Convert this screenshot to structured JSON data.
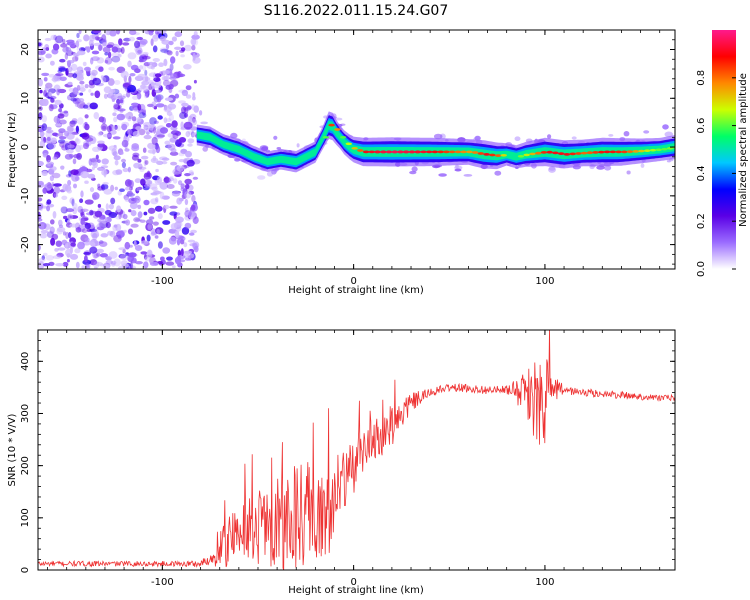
{
  "title": "S116.2022.011.15.24.G07",
  "chart_data": [
    {
      "type": "heatmap",
      "xlabel": "Height of straight line (km)",
      "ylabel": "Frequency (Hz)",
      "xlim": [
        -165,
        168
      ],
      "ylim": [
        -25,
        24
      ],
      "xticks": [
        -100,
        0,
        100
      ],
      "yticks": [
        -20,
        -10,
        0,
        10,
        20
      ],
      "colorbar": {
        "label": "Normalized spectral amplitude",
        "range": [
          0,
          1
        ],
        "ticks": [
          0.0,
          0.2,
          0.4,
          0.6,
          0.8
        ],
        "tick_labels": [
          "0.0",
          "0.2",
          "0.4",
          "0.6",
          "0.8"
        ],
        "colormap": [
          "#ffffff",
          "#9b6cff",
          "#5a00e6",
          "#0000ff",
          "#00c8ff",
          "#00ff66",
          "#ccff00",
          "#ff8800",
          "#ff0000",
          "#ff1a8c"
        ]
      },
      "noise_region": {
        "x_range": [
          -165,
          -82
        ],
        "y_range": [
          -25,
          24
        ]
      },
      "ridge": {
        "x": [
          -82,
          -75,
          -68,
          -60,
          -52,
          -45,
          -38,
          -30,
          -25,
          -20,
          -16,
          -13,
          -11,
          -9,
          -7,
          -5,
          -2,
          0,
          5,
          20,
          40,
          60,
          68,
          75,
          80,
          85,
          90,
          100,
          110,
          120,
          130,
          140,
          150,
          160,
          168
        ],
        "freq": [
          2.5,
          2.0,
          0.5,
          -0.5,
          -2.0,
          -3.0,
          -2.5,
          -3.0,
          -2.0,
          -1.0,
          2.0,
          4.5,
          4.2,
          3.0,
          2.0,
          1.0,
          0.0,
          -0.5,
          -1.0,
          -1.0,
          -1.0,
          -1.0,
          -1.5,
          -1.8,
          -1.5,
          -2.0,
          -1.5,
          -1.0,
          -1.5,
          -1.2,
          -1.0,
          -1.0,
          -0.8,
          -0.5,
          0.0
        ],
        "amplitude": [
          0.45,
          0.5,
          0.45,
          0.5,
          0.5,
          0.45,
          0.45,
          0.5,
          0.5,
          0.5,
          0.6,
          0.85,
          0.85,
          0.7,
          0.6,
          0.65,
          0.7,
          0.75,
          0.9,
          0.95,
          0.9,
          0.75,
          0.9,
          0.8,
          0.55,
          0.6,
          0.7,
          0.9,
          0.9,
          0.8,
          0.9,
          0.85,
          0.7,
          0.6,
          0.65
        ]
      }
    },
    {
      "type": "line",
      "xlabel": "Height of straight line (km)",
      "ylabel": "SNR (10 * V/V)",
      "xlim": [
        -165,
        168
      ],
      "ylim": [
        0,
        460
      ],
      "xticks": [
        -100,
        0,
        100
      ],
      "yticks": [
        0,
        100,
        200,
        300,
        400
      ],
      "series": [
        {
          "color": "#ee3333",
          "trend": {
            "x": [
              -165,
              -100,
              -80,
              -75,
              -70,
              -60,
              -50,
              -40,
              -30,
              -20,
              -10,
              0,
              10,
              20,
              25,
              30,
              40,
              50,
              60,
              70,
              80,
              90,
              95,
              100,
              105,
              110,
              120,
              140,
              160,
              168
            ],
            "y": [
              12,
              12,
              12,
              20,
              40,
              70,
              80,
              85,
              95,
              110,
              125,
              200,
              240,
              270,
              300,
              320,
              340,
              350,
              348,
              345,
              345,
              340,
              330,
              330,
              345,
              345,
              340,
              335,
              330,
              330
            ]
          },
          "amplitude": {
            "x": [
              -165,
              -90,
              -75,
              -70,
              -60,
              -50,
              -40,
              -30,
              -20,
              -10,
              0,
              10,
              20,
              30,
              40,
              80,
              90,
              95,
              100,
              105,
              110,
              168
            ],
            "y": [
              5,
              5,
              10,
              40,
              60,
              70,
              90,
              110,
              110,
              90,
              60,
              50,
              40,
              20,
              8,
              8,
              40,
              90,
              90,
              30,
              8,
              6
            ]
          }
        }
      ]
    }
  ]
}
